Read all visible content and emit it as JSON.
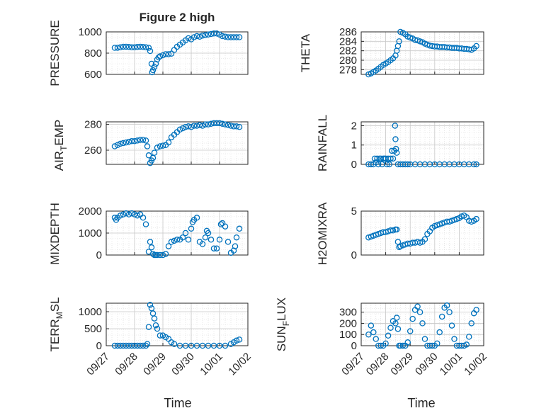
{
  "figure": {
    "title": "Figure 2 high",
    "xlabel": "Time",
    "x_ticks": [
      "09/27",
      "09/28",
      "09/29",
      "09/30",
      "10/01",
      "10/02"
    ]
  },
  "chart_data": [
    {
      "type": "scatter",
      "panel": "pressure",
      "title": "Figure 2 high",
      "ylabel": "PRESSURE",
      "xlabel": "",
      "xlim": [
        0,
        5
      ],
      "ylim": [
        600,
        1000
      ],
      "yticks": [
        600,
        800,
        1000
      ],
      "grid": true,
      "color": "#0072BD",
      "x": [
        0.3,
        0.4,
        0.5,
        0.6,
        0.7,
        0.8,
        0.9,
        1.0,
        1.1,
        1.2,
        1.3,
        1.4,
        1.5,
        1.55,
        1.6,
        1.62,
        1.65,
        1.7,
        1.75,
        1.8,
        1.85,
        1.9,
        2.0,
        2.1,
        2.2,
        2.3,
        2.4,
        2.5,
        2.6,
        2.7,
        2.8,
        2.9,
        3.0,
        3.1,
        3.2,
        3.3,
        3.4,
        3.5,
        3.6,
        3.7,
        3.8,
        3.9,
        4.0,
        4.1,
        4.2,
        4.3,
        4.4,
        4.5,
        4.6,
        4.7
      ],
      "y": [
        850,
        850,
        855,
        860,
        860,
        858,
        855,
        855,
        858,
        860,
        858,
        855,
        850,
        820,
        700,
        620,
        640,
        670,
        700,
        740,
        760,
        770,
        780,
        790,
        790,
        795,
        830,
        860,
        880,
        900,
        920,
        940,
        930,
        950,
        960,
        955,
        965,
        970,
        975,
        980,
        985,
        985,
        975,
        960,
        955,
        950,
        950,
        950,
        950,
        950
      ]
    },
    {
      "type": "scatter",
      "panel": "theta",
      "ylabel": "THETA",
      "xlabel": "",
      "xlim": [
        0,
        5
      ],
      "ylim": [
        277,
        286
      ],
      "yticks": [
        278,
        280,
        282,
        284,
        286
      ],
      "grid": true,
      "color": "#0072BD",
      "x": [
        0.3,
        0.4,
        0.5,
        0.6,
        0.7,
        0.8,
        0.9,
        1.0,
        1.1,
        1.2,
        1.3,
        1.4,
        1.45,
        1.5,
        1.55,
        1.6,
        1.7,
        1.8,
        1.9,
        2.0,
        2.1,
        2.2,
        2.3,
        2.4,
        2.5,
        2.6,
        2.7,
        2.8,
        2.9,
        3.0,
        3.1,
        3.2,
        3.3,
        3.4,
        3.5,
        3.6,
        3.7,
        3.8,
        3.9,
        4.0,
        4.1,
        4.2,
        4.3,
        4.4,
        4.5,
        4.6,
        4.7
      ],
      "y": [
        277,
        277.2,
        277.5,
        277.8,
        278.2,
        278.6,
        279,
        279.3,
        279.6,
        280,
        280.4,
        281,
        282,
        283,
        284,
        286,
        285.8,
        285.5,
        285,
        284.8,
        284.6,
        284.3,
        284.2,
        284,
        283.8,
        283.5,
        283.3,
        283.1,
        283,
        282.9,
        282.9,
        282.8,
        282.8,
        282.8,
        282.7,
        282.7,
        282.6,
        282.6,
        282.6,
        282.5,
        282.5,
        282.4,
        282.4,
        282.3,
        282.2,
        282.5,
        283
      ]
    },
    {
      "type": "scatter",
      "panel": "air_temp",
      "ylabel_main": "AIR",
      "ylabel_sub": "T",
      "ylabel_tail": "EMP",
      "xlabel": "",
      "xlim": [
        0,
        5
      ],
      "ylim": [
        249,
        282
      ],
      "yticks": [
        260,
        280
      ],
      "grid": true,
      "color": "#0072BD",
      "x": [
        0.3,
        0.4,
        0.5,
        0.6,
        0.7,
        0.8,
        0.9,
        1.0,
        1.1,
        1.2,
        1.3,
        1.4,
        1.45,
        1.5,
        1.55,
        1.6,
        1.65,
        1.7,
        1.8,
        1.9,
        2.0,
        2.1,
        2.2,
        2.3,
        2.4,
        2.5,
        2.6,
        2.7,
        2.8,
        2.9,
        3.0,
        3.1,
        3.2,
        3.3,
        3.4,
        3.5,
        3.6,
        3.7,
        3.8,
        3.9,
        4.0,
        4.1,
        4.2,
        4.3,
        4.4,
        4.5,
        4.6,
        4.7
      ],
      "y": [
        263,
        264,
        265,
        265.5,
        266,
        266.5,
        267,
        267,
        267.5,
        268,
        268,
        267.5,
        263,
        256,
        250,
        252,
        254,
        258,
        262,
        263,
        263.5,
        264,
        266,
        270,
        272,
        274,
        276,
        277,
        278,
        278.5,
        278,
        279,
        279,
        279.5,
        279,
        280,
        280,
        280.5,
        281,
        281,
        281,
        280.5,
        280,
        279.5,
        279,
        278.5,
        278.5,
        278
      ]
    },
    {
      "type": "scatter",
      "panel": "rainfall",
      "ylabel": "RAINFALL",
      "xlabel": "",
      "xlim": [
        0,
        5
      ],
      "ylim": [
        0,
        2.2
      ],
      "yticks": [
        0,
        1,
        2
      ],
      "grid": true,
      "color": "#0072BD",
      "x": [
        0.3,
        0.4,
        0.5,
        0.55,
        0.6,
        0.65,
        0.7,
        0.75,
        0.8,
        0.85,
        0.9,
        0.95,
        1.0,
        1.05,
        1.1,
        1.15,
        1.2,
        1.25,
        1.3,
        1.35,
        1.38,
        1.4,
        1.42,
        1.45,
        1.5,
        1.6,
        1.7,
        1.8,
        1.9,
        2.0,
        2.2,
        2.4,
        2.6,
        2.8,
        3.0,
        3.2,
        3.4,
        3.6,
        3.8,
        4.0,
        4.2,
        4.4,
        4.6,
        4.7
      ],
      "y": [
        0,
        0,
        0,
        0.3,
        0.1,
        0.3,
        0,
        0.3,
        0.3,
        0,
        0.3,
        0.3,
        0.3,
        0,
        0.3,
        0,
        0.3,
        0.7,
        0.3,
        0.7,
        2.0,
        1.3,
        0.8,
        0.6,
        0,
        0,
        0,
        0,
        0,
        0,
        0,
        0,
        0,
        0,
        0,
        0,
        0,
        0,
        0,
        0,
        0,
        0,
        0,
        0
      ]
    },
    {
      "type": "scatter",
      "panel": "mixdepth",
      "ylabel": "MIXDEPTH",
      "xlabel": "",
      "xlim": [
        0,
        5
      ],
      "ylim": [
        0,
        2000
      ],
      "yticks": [
        0,
        1000,
        2000
      ],
      "grid": true,
      "color": "#0072BD",
      "x": [
        0.3,
        0.35,
        0.4,
        0.5,
        0.6,
        0.7,
        0.8,
        0.9,
        1.0,
        1.1,
        1.2,
        1.3,
        1.4,
        1.5,
        1.55,
        1.6,
        1.65,
        1.7,
        1.75,
        1.8,
        1.9,
        2.0,
        2.1,
        2.2,
        2.3,
        2.4,
        2.5,
        2.6,
        2.7,
        2.8,
        2.9,
        3.0,
        3.05,
        3.1,
        3.2,
        3.3,
        3.4,
        3.5,
        3.55,
        3.6,
        3.7,
        3.8,
        3.9,
        4.0,
        4.05,
        4.1,
        4.2,
        4.3,
        4.4,
        4.5,
        4.55,
        4.6,
        4.7
      ],
      "y": [
        1700,
        1600,
        1700,
        1800,
        1850,
        1900,
        1850,
        1900,
        1850,
        1800,
        1850,
        1700,
        1400,
        150,
        600,
        350,
        50,
        0,
        0,
        0,
        0,
        0,
        50,
        400,
        600,
        650,
        700,
        700,
        800,
        1000,
        700,
        1200,
        1500,
        1600,
        1700,
        600,
        500,
        800,
        1100,
        1000,
        700,
        300,
        300,
        700,
        1400,
        1450,
        1300,
        600,
        100,
        200,
        400,
        800,
        1200
      ]
    },
    {
      "type": "scatter",
      "panel": "h2omixra",
      "ylabel": "H2OMIXRA",
      "xlabel": "",
      "xlim": [
        0,
        5
      ],
      "ylim": [
        0,
        5
      ],
      "yticks": [
        0,
        5
      ],
      "grid": true,
      "color": "#0072BD",
      "x": [
        0.3,
        0.4,
        0.5,
        0.6,
        0.7,
        0.8,
        0.9,
        1.0,
        1.1,
        1.2,
        1.3,
        1.4,
        1.45,
        1.5,
        1.55,
        1.6,
        1.7,
        1.8,
        1.9,
        2.0,
        2.1,
        2.2,
        2.3,
        2.4,
        2.5,
        2.6,
        2.7,
        2.8,
        2.9,
        3.0,
        3.1,
        3.2,
        3.3,
        3.4,
        3.5,
        3.6,
        3.7,
        3.8,
        3.9,
        4.0,
        4.1,
        4.2,
        4.3,
        4.4,
        4.5,
        4.6,
        4.7
      ],
      "y": [
        2.0,
        2.1,
        2.2,
        2.3,
        2.4,
        2.5,
        2.6,
        2.6,
        2.7,
        2.8,
        2.8,
        2.9,
        2.9,
        1.5,
        0.9,
        1.0,
        1.1,
        1.2,
        1.3,
        1.3,
        1.4,
        1.4,
        1.5,
        1.4,
        1.5,
        1.8,
        2.4,
        2.7,
        3.1,
        3.3,
        3.4,
        3.5,
        3.6,
        3.7,
        3.8,
        3.8,
        3.9,
        4.0,
        4.1,
        4.2,
        4.4,
        4.5,
        4.3,
        3.9,
        3.8,
        3.9,
        4.1
      ]
    },
    {
      "type": "scatter",
      "panel": "terr_msl",
      "ylabel_main": "TERR",
      "ylabel_sub": "M",
      "ylabel_tail": "SL",
      "xlabel": "Time",
      "xlim": [
        0,
        5
      ],
      "ylim": [
        0,
        1250
      ],
      "yticks": [
        0,
        500,
        1000
      ],
      "grid": true,
      "color": "#0072BD",
      "x": [
        0.3,
        0.4,
        0.5,
        0.6,
        0.7,
        0.8,
        0.9,
        1.0,
        1.1,
        1.2,
        1.3,
        1.4,
        1.45,
        1.5,
        1.55,
        1.6,
        1.65,
        1.7,
        1.75,
        1.8,
        1.9,
        2.0,
        2.1,
        2.2,
        2.3,
        2.4,
        2.6,
        2.8,
        3.0,
        3.2,
        3.4,
        3.6,
        3.8,
        4.0,
        4.2,
        4.4,
        4.5,
        4.6,
        4.7
      ],
      "y": [
        0,
        0,
        0,
        0,
        0,
        0,
        0,
        0,
        0,
        0,
        0,
        0,
        50,
        550,
        1200,
        1100,
        950,
        800,
        600,
        500,
        300,
        300,
        250,
        200,
        100,
        50,
        0,
        0,
        0,
        0,
        0,
        0,
        0,
        0,
        0,
        50,
        100,
        150,
        180
      ]
    },
    {
      "type": "scatter",
      "panel": "sun_flux",
      "ylabel_main": "SUN",
      "ylabel_sub": "F",
      "ylabel_tail": "LUX",
      "xlabel": "Time",
      "xlim": [
        0,
        5
      ],
      "ylim": [
        0,
        380
      ],
      "yticks": [
        0,
        100,
        200,
        300
      ],
      "grid": true,
      "color": "#0072BD",
      "x": [
        0.3,
        0.4,
        0.5,
        0.6,
        0.7,
        0.8,
        0.9,
        1.0,
        1.1,
        1.2,
        1.3,
        1.4,
        1.45,
        1.5,
        1.55,
        1.6,
        1.7,
        1.8,
        1.9,
        2.0,
        2.1,
        2.2,
        2.3,
        2.4,
        2.5,
        2.6,
        2.7,
        2.8,
        2.9,
        3.0,
        3.1,
        3.2,
        3.3,
        3.4,
        3.5,
        3.6,
        3.7,
        3.8,
        3.9,
        4.0,
        4.1,
        4.2,
        4.3,
        4.4,
        4.5,
        4.6,
        4.7
      ],
      "y": [
        100,
        180,
        120,
        60,
        0,
        0,
        0,
        20,
        90,
        160,
        220,
        200,
        250,
        150,
        0,
        0,
        0,
        0,
        30,
        130,
        240,
        320,
        350,
        300,
        200,
        60,
        0,
        0,
        0,
        0,
        20,
        120,
        260,
        340,
        360,
        300,
        180,
        60,
        0,
        0,
        0,
        0,
        10,
        80,
        200,
        290,
        320
      ]
    }
  ]
}
